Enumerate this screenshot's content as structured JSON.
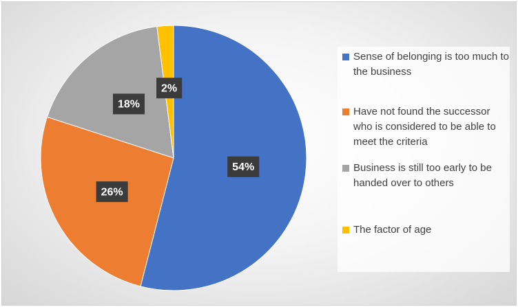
{
  "chart_data": {
    "type": "pie",
    "categories": [
      "Sense of belonging is too much to the business",
      "Have not found the successor who is considered to be able to meet the criteria",
      "Business is still too early to be handed over to others",
      "The factor of age"
    ],
    "values": [
      54,
      26,
      18,
      2
    ],
    "value_labels": [
      "54%",
      "26%",
      "18%",
      "2%"
    ],
    "colors": [
      "#4472c4",
      "#ed7d31",
      "#a5a5a5",
      "#ffc000"
    ],
    "legend": "right"
  }
}
